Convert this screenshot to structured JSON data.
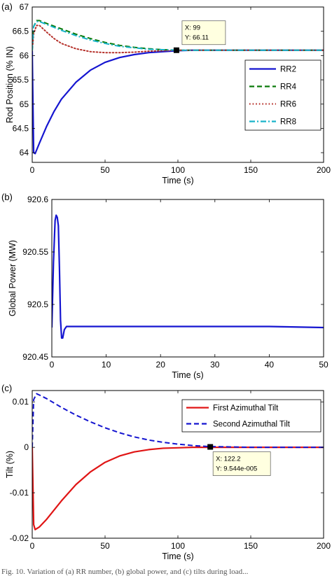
{
  "chart_data": [
    {
      "panel_label": "(a)",
      "type": "line",
      "xlabel": "Time (s)",
      "ylabel": "Rod Position (% IN)",
      "xlim": [
        0,
        200
      ],
      "ylim": [
        63.8,
        67
      ],
      "xticks": [
        0,
        50,
        100,
        150,
        200
      ],
      "yticks": [
        64,
        64.5,
        65,
        65.5,
        66,
        66.5,
        67
      ],
      "ytick_labels": [
        "64",
        "64.5",
        "65",
        "65.5",
        "66",
        "66.5",
        "67"
      ],
      "legend_position": "right",
      "series": [
        {
          "name": "RR2",
          "color": "#1515d0",
          "style": "solid",
          "x": [
            0,
            0.5,
            1,
            2,
            5,
            10,
            15,
            20,
            30,
            40,
            50,
            60,
            70,
            80,
            90,
            100,
            110,
            120,
            150,
            200
          ],
          "y": [
            66.1,
            65.0,
            64.0,
            63.98,
            64.2,
            64.55,
            64.85,
            65.1,
            65.45,
            65.7,
            65.86,
            65.96,
            66.02,
            66.06,
            66.08,
            66.1,
            66.11,
            66.11,
            66.11,
            66.11
          ]
        },
        {
          "name": "RR4",
          "color": "#0a7a0a",
          "style": "dashed",
          "x": [
            0,
            1,
            3,
            5,
            10,
            20,
            30,
            40,
            50,
            60,
            70,
            80,
            90,
            100,
            110,
            150,
            200
          ],
          "y": [
            66.1,
            66.6,
            66.72,
            66.72,
            66.66,
            66.55,
            66.44,
            66.35,
            66.27,
            66.21,
            66.17,
            66.14,
            66.12,
            66.11,
            66.11,
            66.11,
            66.11
          ]
        },
        {
          "name": "RR6",
          "color": "#b5302a",
          "style": "dotted",
          "x": [
            0,
            1,
            3,
            5,
            10,
            15,
            20,
            30,
            40,
            50,
            60,
            70,
            80,
            90,
            100,
            110,
            150,
            200
          ],
          "y": [
            66.1,
            66.45,
            66.62,
            66.62,
            66.48,
            66.35,
            66.25,
            66.14,
            66.08,
            66.06,
            66.06,
            66.07,
            66.09,
            66.1,
            66.11,
            66.11,
            66.11,
            66.11
          ]
        },
        {
          "name": "RR8",
          "color": "#18b3c9",
          "style": "dashdot",
          "x": [
            0,
            1,
            3,
            5,
            10,
            20,
            30,
            40,
            50,
            60,
            70,
            80,
            90,
            100,
            110,
            150,
            200
          ],
          "y": [
            66.1,
            66.6,
            66.7,
            66.7,
            66.64,
            66.52,
            66.41,
            66.32,
            66.25,
            66.19,
            66.16,
            66.13,
            66.12,
            66.11,
            66.11,
            66.11,
            66.11
          ]
        }
      ],
      "datatip": {
        "x": 99,
        "y": 66.11,
        "line1": "X: 99",
        "line2": "Y: 66.11"
      }
    },
    {
      "panel_label": "(b)",
      "type": "line",
      "xlabel": "Time (s)",
      "ylabel": "Global Power (MW)",
      "xlim": [
        0,
        50
      ],
      "ylim": [
        920.45,
        920.6
      ],
      "xticks": [
        0,
        10,
        20,
        30,
        40,
        50
      ],
      "yticks": [
        920.45,
        920.5,
        920.55,
        920.6
      ],
      "ytick_labels": [
        "920.45",
        "920.5",
        "920.55",
        "920.6"
      ],
      "series": [
        {
          "color": "#1515d0",
          "style": "solid",
          "x": [
            0,
            0.3,
            0.6,
            0.8,
            1.0,
            1.2,
            1.4,
            1.6,
            1.8,
            2.0,
            2.3,
            2.7,
            3.5,
            5,
            10,
            20,
            30,
            40,
            50
          ],
          "y": [
            920.478,
            920.54,
            920.58,
            920.585,
            920.583,
            920.575,
            920.535,
            920.485,
            920.468,
            920.468,
            920.476,
            920.479,
            920.479,
            920.479,
            920.479,
            920.479,
            920.479,
            920.479,
            920.478
          ]
        }
      ]
    },
    {
      "panel_label": "(c)",
      "type": "line",
      "xlabel": "Time (s)",
      "ylabel": "Tilt (%)",
      "xlim": [
        0,
        200
      ],
      "ylim": [
        -0.02,
        0.0125
      ],
      "xticks": [
        0,
        50,
        100,
        150,
        200
      ],
      "yticks": [
        -0.02,
        -0.01,
        0,
        0.01
      ],
      "ytick_labels": [
        "-0.02",
        "-0.01",
        "0",
        "0.01"
      ],
      "legend_position": "top-right",
      "series": [
        {
          "name": "First Azimuthal Tilt",
          "color": "#e01515",
          "style": "solid",
          "x": [
            0,
            1,
            2,
            5,
            10,
            20,
            30,
            40,
            50,
            60,
            70,
            80,
            90,
            100,
            110,
            120,
            150,
            200
          ],
          "y": [
            0,
            -0.017,
            -0.0181,
            -0.0175,
            -0.0158,
            -0.0118,
            -0.0082,
            -0.0054,
            -0.0033,
            -0.0019,
            -0.001,
            -0.0005,
            -0.0002,
            -0.0001,
            0,
            0,
            0,
            0
          ]
        },
        {
          "name": "Second Azimuthal Tilt",
          "color": "#1515d0",
          "style": "dashed",
          "x": [
            0,
            1,
            3,
            5,
            10,
            20,
            30,
            40,
            50,
            60,
            70,
            80,
            90,
            100,
            110,
            120,
            150,
            200
          ],
          "y": [
            0,
            0.0105,
            0.0118,
            0.0115,
            0.0107,
            0.0088,
            0.0071,
            0.0056,
            0.0043,
            0.0032,
            0.0023,
            0.0016,
            0.0011,
            0.0007,
            0.0004,
            0.0002,
            0,
            0
          ]
        }
      ],
      "datatip": {
        "x": 122.2,
        "y": 9.544e-05,
        "line1": "X: 122.2",
        "line2": "Y: 9.544e-005"
      }
    }
  ],
  "footer_text": "Fig. 10.  Variation of (a) RR number, (b) global power, and (c) tilts during load..."
}
